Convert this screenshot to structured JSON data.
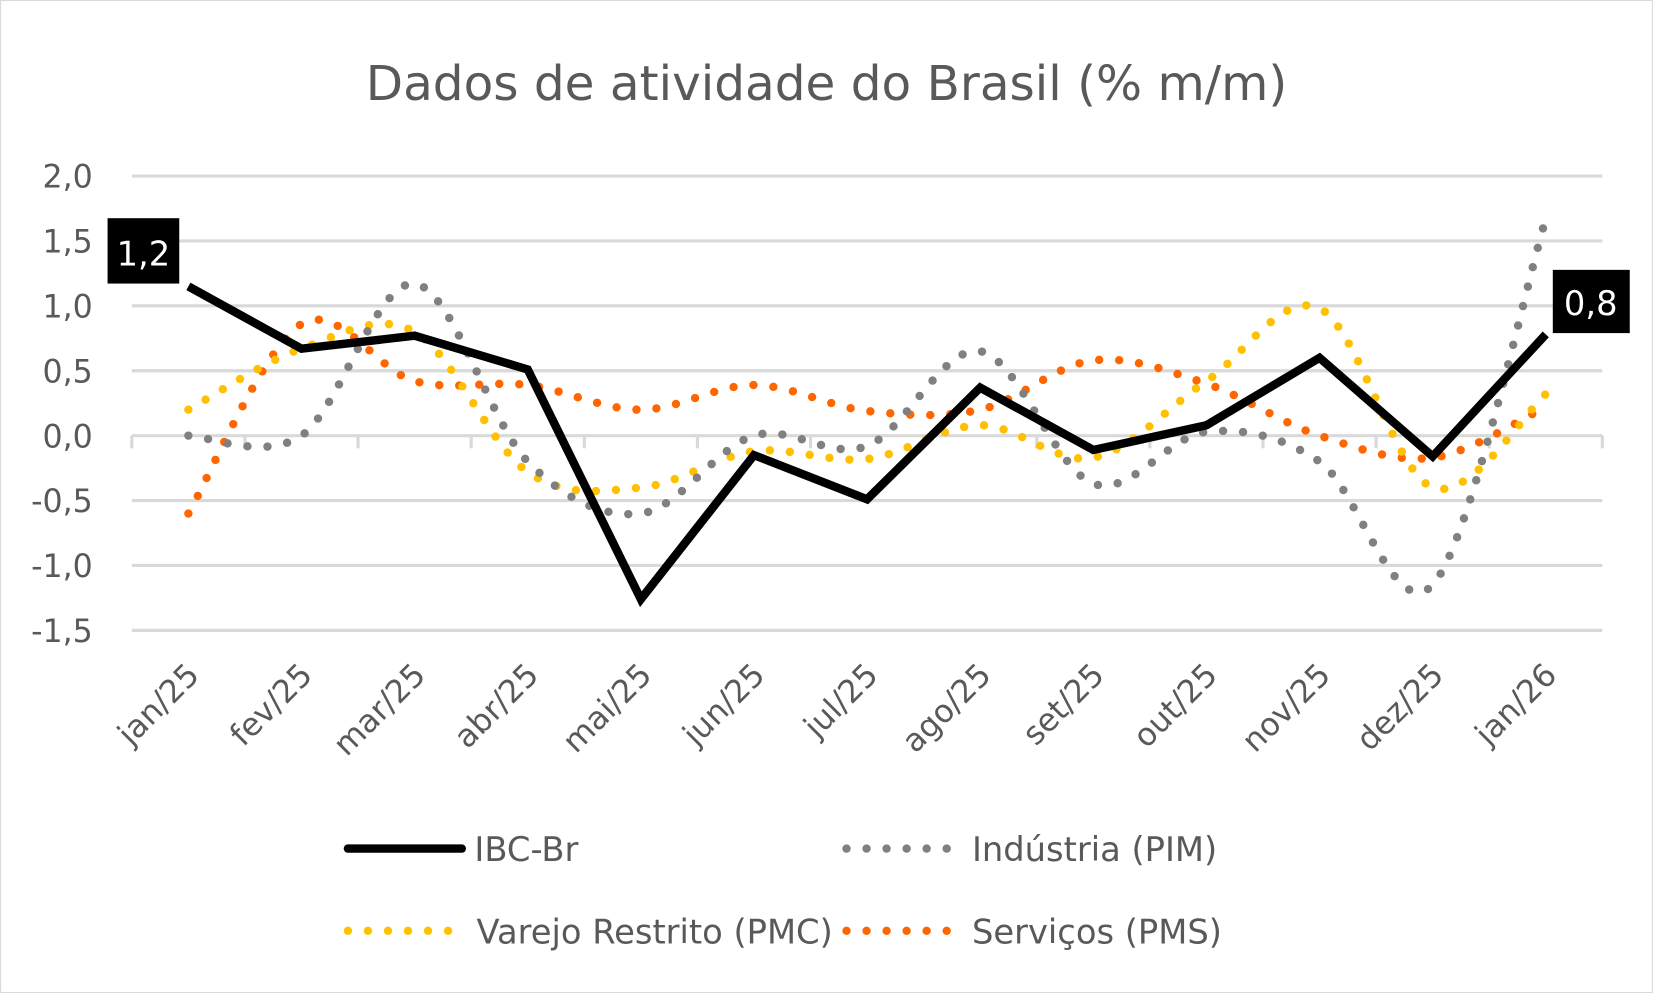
{
  "chart_data": {
    "type": "line",
    "title": "Dados de atividade do Brasil (% m/m)",
    "xlabel": "",
    "ylabel": "",
    "categories": [
      "jan/25",
      "fev/25",
      "mar/25",
      "abr/25",
      "mai/25",
      "jun/25",
      "jul/25",
      "ago/25",
      "set/25",
      "out/25",
      "nov/25",
      "dez/25",
      "jan/26"
    ],
    "ylim": [
      -1.5,
      2.0
    ],
    "yticks": [
      "2,0",
      "1,5",
      "1,0",
      "0,5",
      "0,0",
      "-0,5",
      "-1,0",
      "-1,5"
    ],
    "ytick_values": [
      2.0,
      1.5,
      1.0,
      0.5,
      0.0,
      -0.5,
      -1.0,
      -1.5
    ],
    "grid": true,
    "legend": "bottom",
    "series": [
      {
        "name": "IBC-Br",
        "style": "solid",
        "color": "#000000",
        "values": [
          1.15,
          0.67,
          0.77,
          0.51,
          -1.26,
          -0.15,
          -0.49,
          0.37,
          -0.11,
          0.08,
          0.6,
          -0.16,
          0.78
        ]
      },
      {
        "name": "Indústria (PIM)",
        "style": "dotted",
        "color": "#808080",
        "values": [
          0.0,
          0.0,
          1.17,
          -0.2,
          -0.6,
          0.0,
          -0.08,
          0.65,
          -0.37,
          0.03,
          -0.2,
          -1.15,
          1.67
        ]
      },
      {
        "name": "Varejo Restrito (PMC)",
        "style": "dotted",
        "color": "#FFC000",
        "values": [
          0.2,
          0.67,
          0.8,
          -0.28,
          -0.4,
          -0.12,
          -0.18,
          0.08,
          -0.17,
          0.42,
          0.98,
          -0.4,
          0.32
        ]
      },
      {
        "name": "Serviços (PMS)",
        "style": "dotted",
        "color": "#FF6600",
        "values": [
          -0.6,
          0.86,
          0.42,
          0.39,
          0.2,
          0.39,
          0.19,
          0.2,
          0.58,
          0.4,
          0.0,
          -0.17,
          0.22
        ]
      }
    ],
    "annotations": [
      {
        "series": "IBC-Br",
        "category": "jan/25",
        "text": "1,2"
      },
      {
        "series": "IBC-Br",
        "category": "jan/26",
        "text": "0,8"
      }
    ]
  }
}
